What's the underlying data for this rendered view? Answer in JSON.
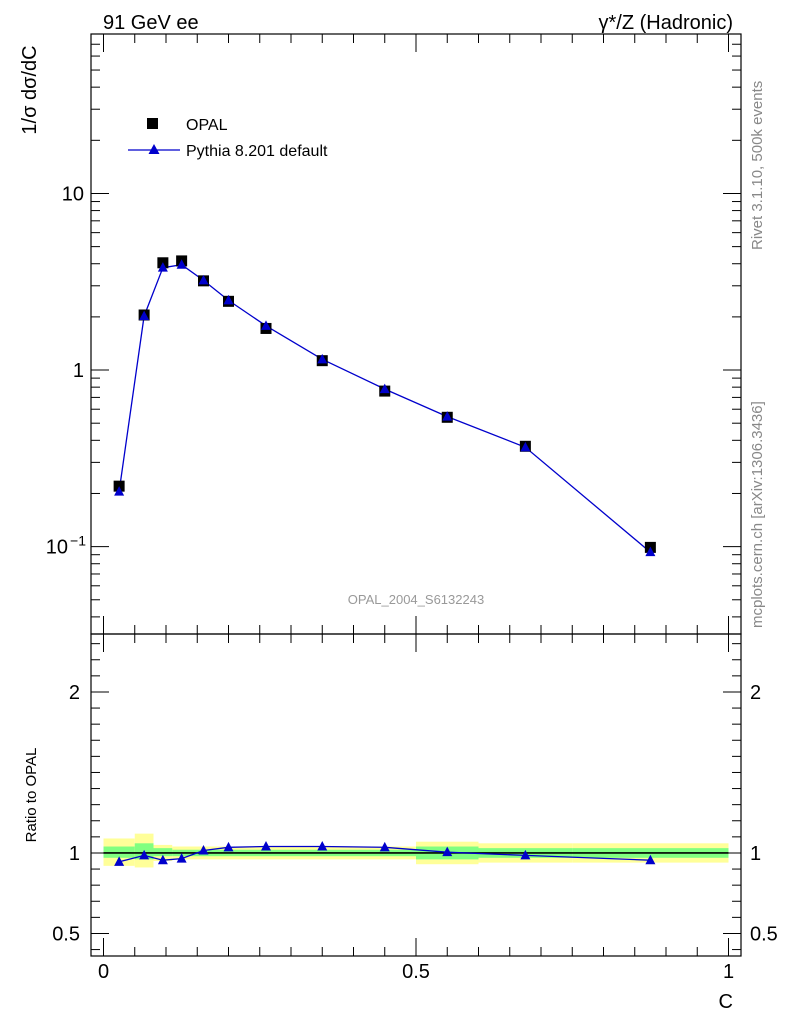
{
  "header": {
    "left": "91 GeV ee",
    "right": "γ*/Z (Hadronic)"
  },
  "side_labels": {
    "rivet": "Rivet 3.1.10,  500k events",
    "mcplots": "mcplots.cern.ch [arXiv:1306.3436]"
  },
  "watermark": "OPAL_2004_S6132243",
  "colors": {
    "data": "#000000",
    "mc": "#0000cc",
    "band_inner": "#80ff80",
    "band_outer": "#ffff99"
  },
  "chart_data": [
    {
      "panel": "main",
      "type": "scatter",
      "yscale": "log",
      "ylabel": "1/σ dσ/dC",
      "xlim": [
        -0.02,
        1.02
      ],
      "ylim": [
        0.032,
        80
      ],
      "yticks": [
        {
          "value": 0.1,
          "label": "10",
          "exp": "−1"
        },
        {
          "value": 1,
          "label": "1",
          "exp": ""
        },
        {
          "value": 10,
          "label": "10",
          "exp": ""
        }
      ],
      "legend": {
        "position": "top-left",
        "entries": [
          "OPAL",
          "Pythia 8.201 default"
        ]
      },
      "series": [
        {
          "name": "OPAL",
          "marker": "square",
          "x": [
            0.025,
            0.065,
            0.095,
            0.125,
            0.16,
            0.2,
            0.26,
            0.35,
            0.45,
            0.55,
            0.675,
            0.875
          ],
          "y": [
            0.22,
            2.05,
            4.05,
            4.15,
            3.2,
            2.45,
            1.72,
            1.13,
            0.76,
            0.54,
            0.37,
            0.099
          ]
        },
        {
          "name": "Pythia 8.201 default",
          "marker": "triangle",
          "x": [
            0.025,
            0.065,
            0.095,
            0.125,
            0.16,
            0.2,
            0.26,
            0.35,
            0.45,
            0.55,
            0.675,
            0.875
          ],
          "y": [
            0.205,
            2.02,
            3.8,
            3.95,
            3.22,
            2.48,
            1.78,
            1.15,
            0.78,
            0.545,
            0.365,
            0.093
          ]
        }
      ]
    },
    {
      "panel": "ratio",
      "type": "line",
      "ylabel": "Ratio to OPAL",
      "xlabel": "C",
      "xlim": [
        -0.02,
        1.02
      ],
      "ylim": [
        0.36,
        2.36
      ],
      "xticks": [
        {
          "value": 0,
          "label": "0"
        },
        {
          "value": 0.5,
          "label": "0.5"
        },
        {
          "value": 1,
          "label": "1"
        }
      ],
      "yticks": [
        {
          "value": 0.5,
          "label": "0.5"
        },
        {
          "value": 1,
          "label": "1"
        },
        {
          "value": 2,
          "label": "2"
        }
      ],
      "bands": [
        {
          "x0": 0.0,
          "x1": 0.05,
          "inner": [
            0.97,
            1.04
          ],
          "outer": [
            0.92,
            1.09
          ]
        },
        {
          "x0": 0.05,
          "x1": 0.08,
          "inner": [
            0.96,
            1.06
          ],
          "outer": [
            0.91,
            1.12
          ]
        },
        {
          "x0": 0.08,
          "x1": 0.11,
          "inner": [
            0.98,
            1.03
          ],
          "outer": [
            0.95,
            1.05
          ]
        },
        {
          "x0": 0.11,
          "x1": 0.14,
          "inner": [
            0.98,
            1.02
          ],
          "outer": [
            0.96,
            1.04
          ]
        },
        {
          "x0": 0.14,
          "x1": 0.18,
          "inner": [
            0.98,
            1.02
          ],
          "outer": [
            0.96,
            1.04
          ]
        },
        {
          "x0": 0.18,
          "x1": 0.22,
          "inner": [
            0.98,
            1.02
          ],
          "outer": [
            0.96,
            1.04
          ]
        },
        {
          "x0": 0.22,
          "x1": 0.3,
          "inner": [
            0.98,
            1.02
          ],
          "outer": [
            0.96,
            1.04
          ]
        },
        {
          "x0": 0.3,
          "x1": 0.4,
          "inner": [
            0.98,
            1.02
          ],
          "outer": [
            0.96,
            1.04
          ]
        },
        {
          "x0": 0.4,
          "x1": 0.5,
          "inner": [
            0.98,
            1.02
          ],
          "outer": [
            0.96,
            1.04
          ]
        },
        {
          "x0": 0.5,
          "x1": 0.6,
          "inner": [
            0.96,
            1.04
          ],
          "outer": [
            0.93,
            1.07
          ]
        },
        {
          "x0": 0.6,
          "x1": 0.75,
          "inner": [
            0.97,
            1.03
          ],
          "outer": [
            0.94,
            1.06
          ]
        },
        {
          "x0": 0.75,
          "x1": 1.0,
          "inner": [
            0.97,
            1.03
          ],
          "outer": [
            0.94,
            1.06
          ]
        }
      ],
      "series": [
        {
          "name": "Pythia 8.201 default",
          "x": [
            0.025,
            0.065,
            0.095,
            0.125,
            0.16,
            0.2,
            0.26,
            0.35,
            0.45,
            0.55,
            0.675,
            0.875
          ],
          "y": [
            0.945,
            0.985,
            0.955,
            0.965,
            1.015,
            1.035,
            1.04,
            1.04,
            1.035,
            1.005,
            0.985,
            0.955
          ]
        }
      ]
    }
  ]
}
